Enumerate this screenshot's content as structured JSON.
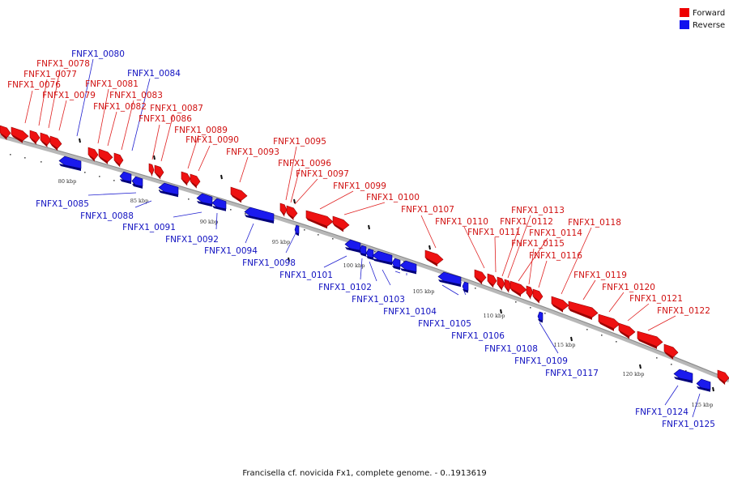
{
  "caption": "Francisella cf. novicida Fx1, complete genome. - 0..1913619",
  "legend": {
    "forward": {
      "label": "Forward",
      "color": "#ee0000"
    },
    "reverse": {
      "label": "Reverse",
      "color": "#1111ee"
    }
  },
  "colors": {
    "forward": "#ee1111",
    "forward_dark": "#9a0000",
    "reverse": "#1a1aee",
    "reverse_dark": "#00007a",
    "backbone": "#b8b8b8"
  },
  "scale_ticks": [
    "80 kbp",
    "85 kbp",
    "90 kbp",
    "95 kbp",
    "100 kbp",
    "105 kbp",
    "110 kbp",
    "115 kbp",
    "120 kbp",
    "125 kbp"
  ],
  "forward_genes": [
    "FNFX1_0076",
    "FNFX1_0077",
    "FNFX1_0078",
    "FNFX1_0079",
    "FNFX1_0081",
    "FNFX1_0082",
    "FNFX1_0083",
    "FNFX1_0086",
    "FNFX1_0087",
    "FNFX1_0089",
    "FNFX1_0090",
    "FNFX1_0093",
    "FNFX1_0095",
    "FNFX1_0096",
    "FNFX1_0097",
    "FNFX1_0099",
    "FNFX1_0100",
    "FNFX1_0107",
    "FNFX1_0110",
    "FNFX1_0111",
    "FNFX1_0112",
    "FNFX1_0113",
    "FNFX1_0114",
    "FNFX1_0115",
    "FNFX1_0116",
    "FNFX1_0118",
    "FNFX1_0119",
    "FNFX1_0120",
    "FNFX1_0121",
    "FNFX1_0122"
  ],
  "reverse_genes": [
    "FNFX1_0080",
    "FNFX1_0084",
    "FNFX1_0085",
    "FNFX1_0088",
    "FNFX1_0091",
    "FNFX1_0092",
    "FNFX1_0094",
    "FNFX1_0098",
    "FNFX1_0101",
    "FNFX1_0102",
    "FNFX1_0103",
    "FNFX1_0104",
    "FNFX1_0105",
    "FNFX1_0106",
    "FNFX1_0108",
    "FNFX1_0109",
    "FNFX1_0117",
    "FNFX1_0124",
    "FNFX1_0125"
  ]
}
